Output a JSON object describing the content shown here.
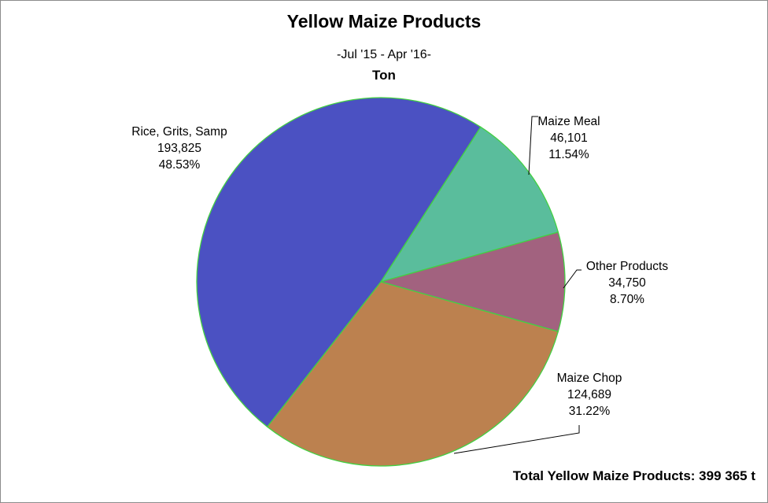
{
  "chart_data": {
    "type": "pie",
    "title": "Yellow Maize Products",
    "subtitle": "-Jul '15 - Apr '16-",
    "unit": "Ton",
    "total_text": "Total Yellow Maize Products: 399 365 t",
    "slices": [
      {
        "name": "Rice, Grits, Samp",
        "value": 193825,
        "value_label": "193,825",
        "percent_label": "48.53%",
        "color": "#4b51c2"
      },
      {
        "name": "Maize Meal",
        "value": 46101,
        "value_label": "46,101",
        "percent_label": "11.54%",
        "color": "#5abd9c"
      },
      {
        "name": "Other Products",
        "value": 34750,
        "value_label": "34,750",
        "percent_label": "8.70%",
        "color": "#a2627f"
      },
      {
        "name": "Maize Chop",
        "value": 124689,
        "value_label": "124,689",
        "percent_label": "31.22%",
        "color": "#bc814f"
      }
    ],
    "edge_color": "#43d043"
  }
}
